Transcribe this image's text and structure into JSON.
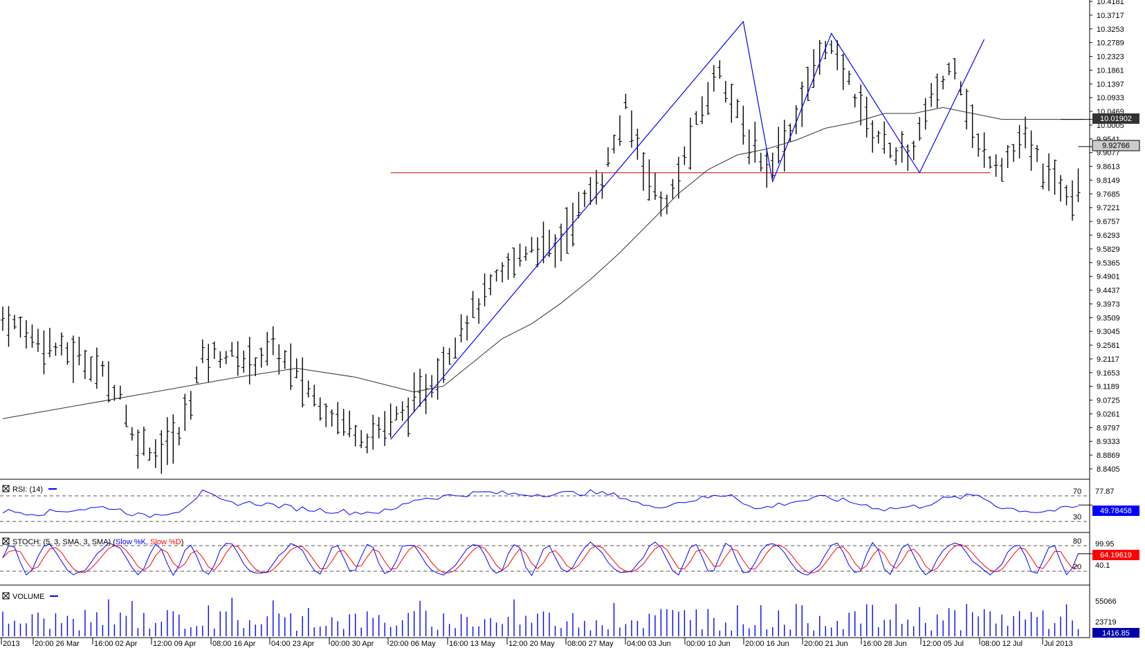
{
  "chart_data": {
    "type": "ohlc",
    "y_axis_ticks": [
      "10.4181",
      "10.3717",
      "10.3253",
      "10.2789",
      "10.2323",
      "10.1861",
      "10.1397",
      "10.0933",
      "10.0469",
      "10.0005",
      "9.9541",
      "9.9077",
      "9.8613",
      "9.8149",
      "9.7685",
      "9.7221",
      "9.6757",
      "9.6293",
      "9.5829",
      "9.5365",
      "9.4901",
      "9.4437",
      "9.3973",
      "9.3509",
      "9.3045",
      "9.2581",
      "9.2117",
      "9.1653",
      "9.1189",
      "9.0725",
      "9.0261",
      "8.9797",
      "8.9333",
      "8.8869",
      "8.8405"
    ],
    "ylim": [
      8.8405,
      10.4181
    ],
    "x_axis_ticks": [
      "2013",
      "20:00 26 Mar",
      "16:00 02 Apr",
      "12:00 09 Apr",
      "08:00 16 Apr",
      "04:00 23 Apr",
      "00:00 30 Apr",
      "20:00 06 May",
      "16:00 13 May",
      "12:00 20 May",
      "08:00 27 May",
      "04:00 03 Jun",
      "00:00 10 Jun",
      "20:00 16 Jun",
      "20:00 21 Jun",
      "16:00 28 Jun",
      "12:00 05 Jul",
      "08:00 12 Jul",
      "Jul 2013"
    ],
    "price_path": [
      [
        0,
        9.35
      ],
      [
        5,
        9.29
      ],
      [
        10,
        9.24
      ],
      [
        15,
        9.2
      ],
      [
        20,
        9.1
      ],
      [
        22,
        8.95
      ],
      [
        26,
        8.9
      ],
      [
        30,
        8.95
      ],
      [
        34,
        9.22
      ],
      [
        38,
        9.23
      ],
      [
        42,
        9.2
      ],
      [
        46,
        9.25
      ],
      [
        50,
        9.16
      ],
      [
        54,
        9.06
      ],
      [
        58,
        9.0
      ],
      [
        62,
        8.95
      ],
      [
        66,
        9.0
      ],
      [
        70,
        9.06
      ],
      [
        74,
        9.16
      ],
      [
        78,
        9.32
      ],
      [
        82,
        9.42
      ],
      [
        86,
        9.52
      ],
      [
        90,
        9.6
      ],
      [
        94,
        9.58
      ],
      [
        98,
        9.72
      ],
      [
        102,
        9.82
      ],
      [
        106,
        10.05
      ],
      [
        110,
        9.82
      ],
      [
        113,
        9.72
      ],
      [
        118,
        10.0
      ],
      [
        122,
        10.2
      ],
      [
        126,
        9.98
      ],
      [
        130,
        9.86
      ],
      [
        134,
        9.98
      ],
      [
        140,
        10.28
      ],
      [
        144,
        10.15
      ],
      [
        148,
        9.98
      ],
      [
        154,
        9.88
      ],
      [
        158,
        10.08
      ],
      [
        162,
        10.22
      ],
      [
        166,
        9.92
      ],
      [
        170,
        9.87
      ],
      [
        174,
        9.95
      ],
      [
        178,
        9.82
      ],
      [
        182,
        9.78
      ],
      [
        184,
        9.86
      ]
    ],
    "sma_line": [
      [
        0,
        9.01
      ],
      [
        40,
        9.15
      ],
      [
        50,
        9.18
      ],
      [
        60,
        9.15
      ],
      [
        70,
        9.1
      ],
      [
        75,
        9.12
      ],
      [
        80,
        9.2
      ],
      [
        85,
        9.28
      ],
      [
        90,
        9.33
      ],
      [
        95,
        9.4
      ],
      [
        100,
        9.48
      ],
      [
        105,
        9.57
      ],
      [
        110,
        9.67
      ],
      [
        115,
        9.77
      ],
      [
        120,
        9.85
      ],
      [
        125,
        9.9
      ],
      [
        130,
        9.92
      ],
      [
        135,
        9.95
      ],
      [
        140,
        9.99
      ],
      [
        145,
        10.01
      ],
      [
        150,
        10.04
      ],
      [
        155,
        10.04
      ],
      [
        160,
        10.06
      ],
      [
        165,
        10.04
      ],
      [
        170,
        10.02
      ],
      [
        175,
        10.02
      ],
      [
        180,
        10.02
      ],
      [
        184,
        10.02
      ]
    ],
    "pattern_lines": [
      [
        66,
        8.94
      ],
      [
        126,
        10.35
      ],
      [
        131,
        9.81
      ],
      [
        141,
        10.31
      ],
      [
        156,
        9.84
      ],
      [
        167,
        10.29
      ]
    ],
    "support_level": {
      "value": 9.84,
      "from": 66,
      "to": 168
    },
    "current_price": "10.01902",
    "last_close": "9.92766",
    "bar_count": 184,
    "rsi": {
      "label": "RSI: (14)",
      "levels": [
        "70",
        "30"
      ],
      "scale": "77.87",
      "current": "49.78458",
      "path": [
        [
          0,
          41
        ],
        [
          6,
          38
        ],
        [
          12,
          43
        ],
        [
          18,
          47
        ],
        [
          24,
          33
        ],
        [
          30,
          42
        ],
        [
          34,
          68
        ],
        [
          38,
          53
        ],
        [
          44,
          52
        ],
        [
          50,
          45
        ],
        [
          55,
          42
        ],
        [
          60,
          39
        ],
        [
          66,
          41
        ],
        [
          70,
          58
        ],
        [
          76,
          63
        ],
        [
          82,
          68
        ],
        [
          88,
          65
        ],
        [
          94,
          66
        ],
        [
          100,
          68
        ],
        [
          105,
          63
        ],
        [
          110,
          46
        ],
        [
          114,
          52
        ],
        [
          118,
          58
        ],
        [
          124,
          66
        ],
        [
          128,
          43
        ],
        [
          134,
          54
        ],
        [
          140,
          61
        ],
        [
          146,
          51
        ],
        [
          150,
          44
        ],
        [
          156,
          48
        ],
        [
          160,
          58
        ],
        [
          166,
          64
        ],
        [
          170,
          46
        ],
        [
          176,
          40
        ],
        [
          180,
          43
        ],
        [
          184,
          49
        ]
      ]
    },
    "stoch": {
      "label": "STOCH: (5, 3, SMA, 3, SMA)",
      "k_label": "Slow %K",
      "d_label": "Slow %D",
      "levels": [
        "80",
        "20"
      ],
      "scale_top": "99.95",
      "scale_mid": "40.1",
      "current": "64.19619"
    },
    "volume": {
      "label": "VOLUME",
      "ticks": [
        "55066",
        "23719"
      ],
      "current": "1416.85"
    }
  },
  "colors": {
    "bars": "#000000",
    "sma": "#333333",
    "pattern": "#0000ff",
    "support": "#cc0000",
    "rsi": "#0000ff",
    "stoch_k": "#0000ff",
    "stoch_d": "#ff0000",
    "volume": "#0000ff",
    "price_badge_bg": "#333333",
    "last_badge_bg": "#cccccc",
    "rsi_badge_bg": "#0000ff",
    "stoch_badge_bg": "#ff0000",
    "volume_badge_bg": "#0000aa"
  },
  "icons": {
    "panel_toggle": "close-box-icon"
  }
}
